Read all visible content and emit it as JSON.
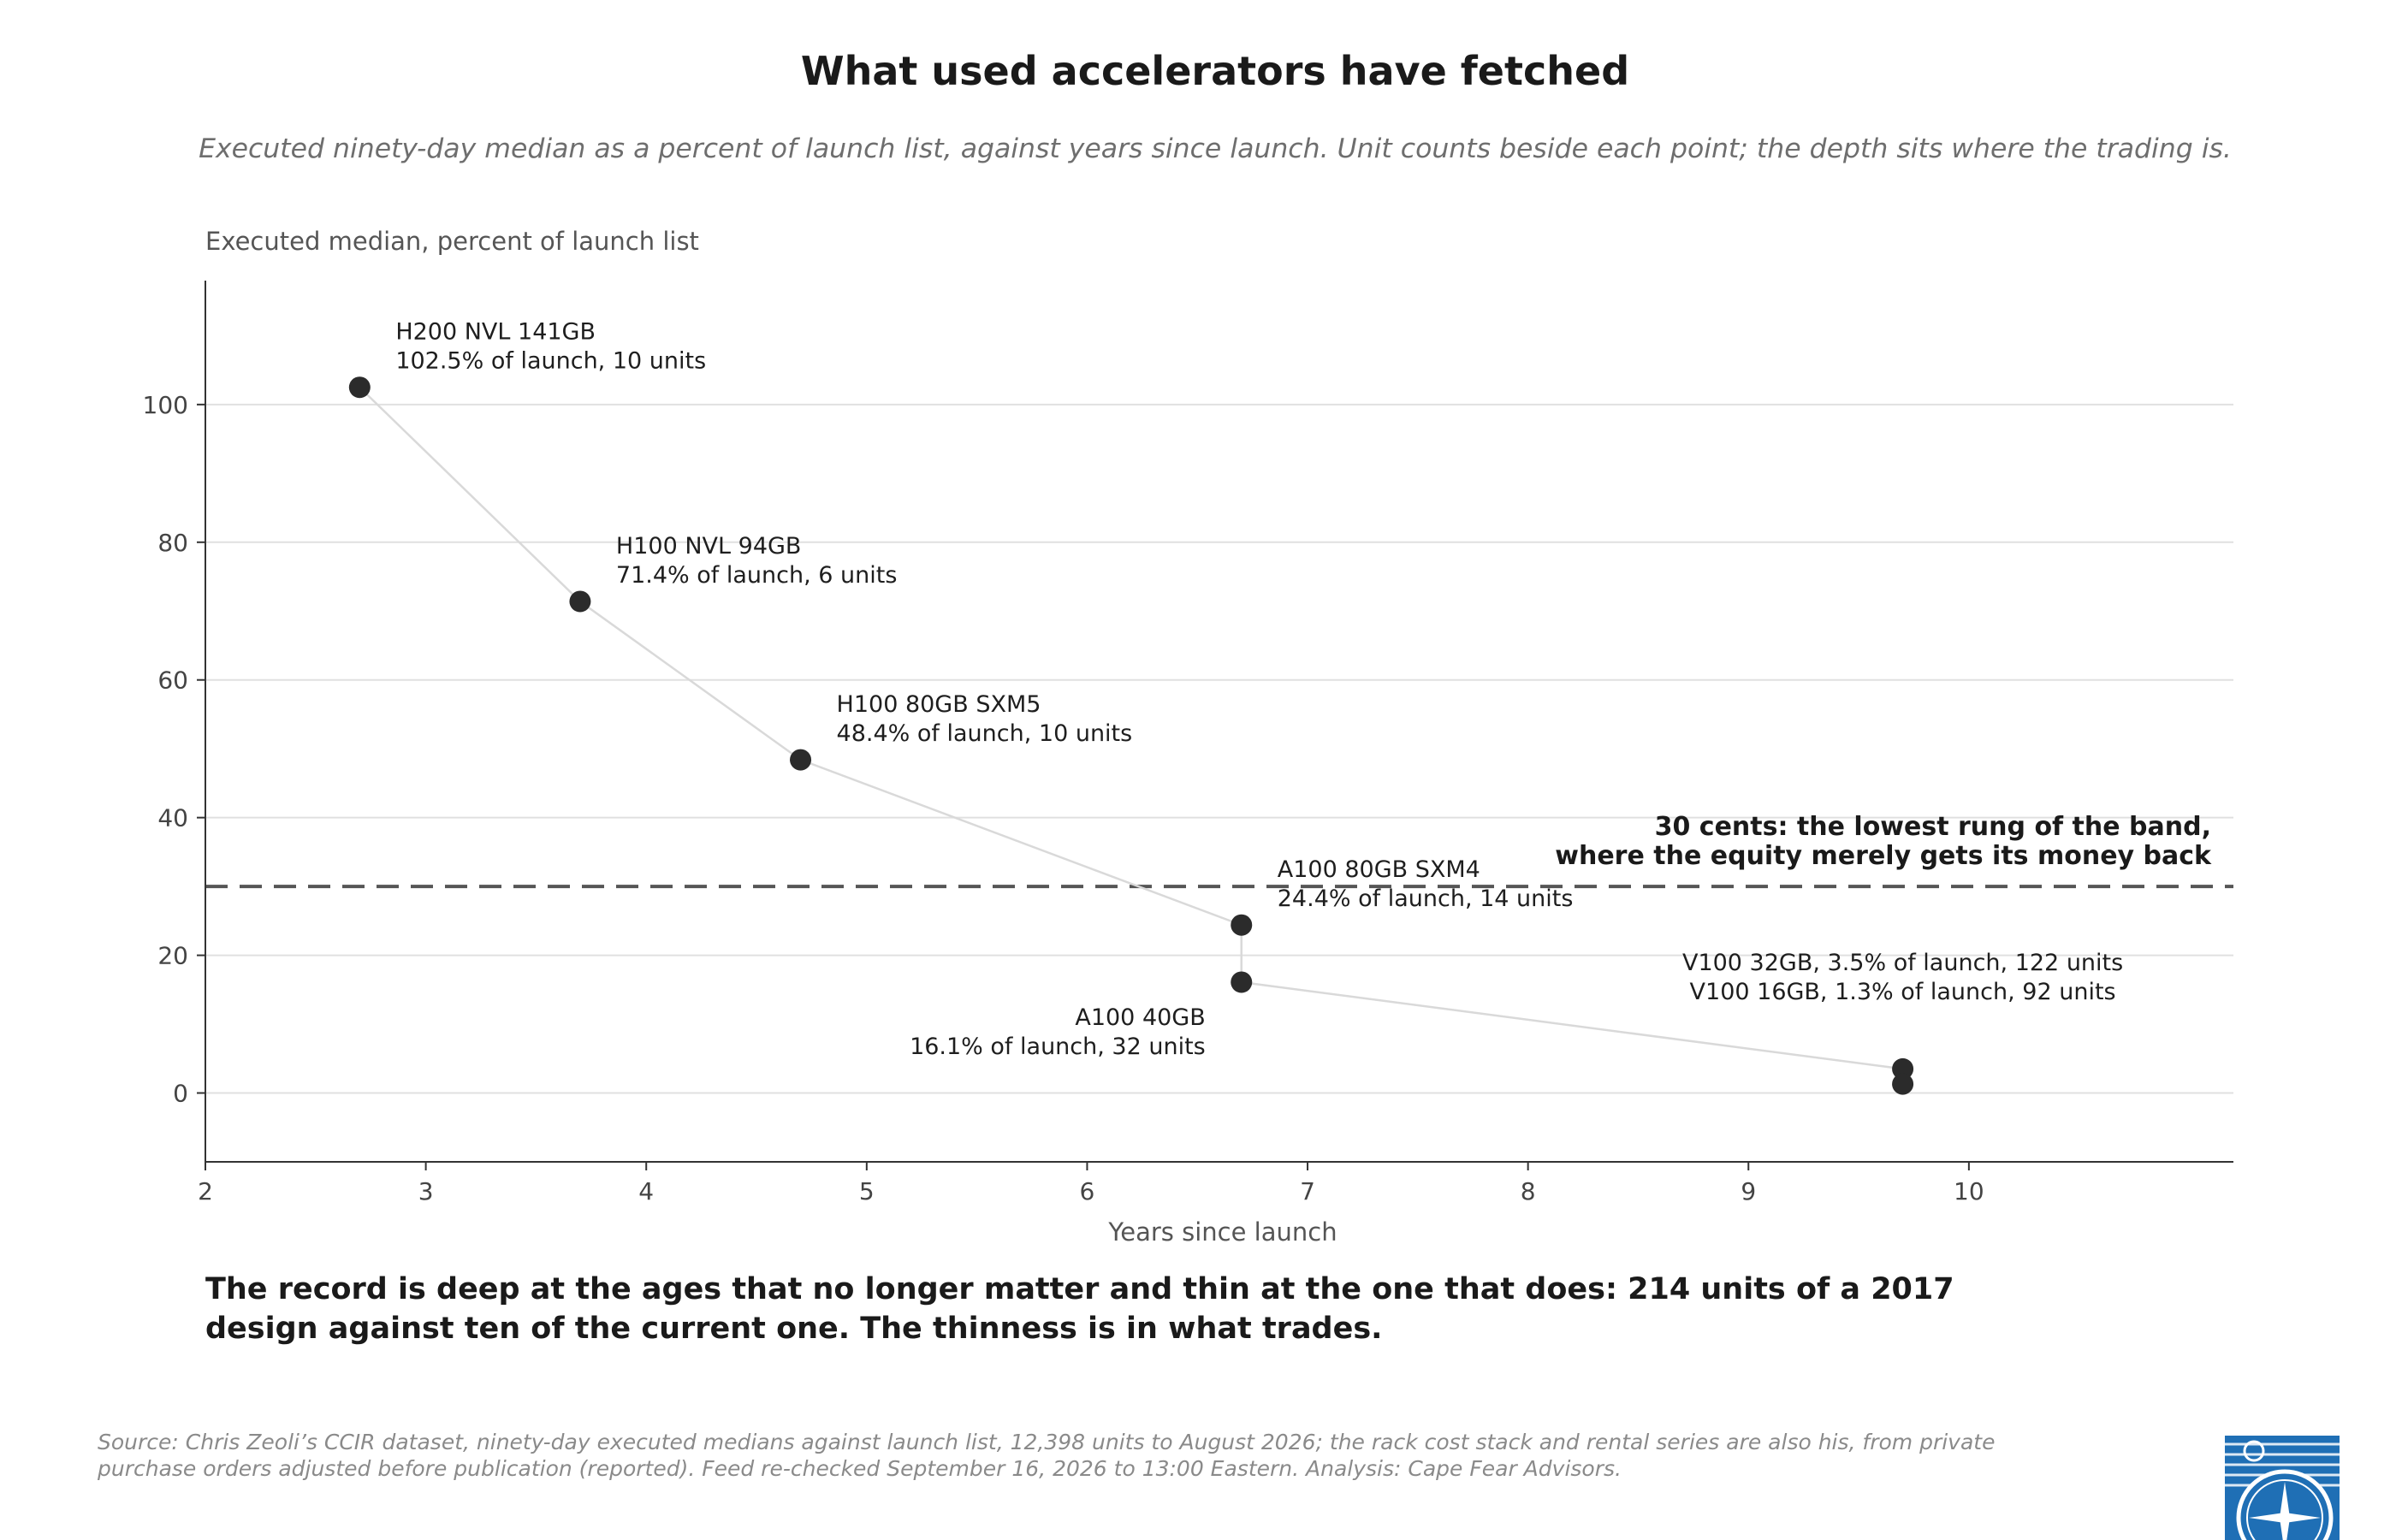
{
  "title": "What used accelerators have fetched",
  "subtitle": "Executed ninety-day median as a percent of launch list, against years since launch. Unit counts beside each point; the depth sits where the trading is.",
  "takeaway": "The record is deep at the ages that no longer matter and thin at the one that does: 214 units of a 2017 design against ten of the current one. The thinness is in what trades.",
  "source": "Source: Chris Zeoli’s CCIR dataset, ninety-day executed medians against launch list, 12,398 units to August 2026; the rack cost stack and rental series are also his, from private purchase orders adjusted before publication (reported). Feed re-checked September 16, 2026 to 13:00 Eastern. Analysis: Cape Fear Advisors.",
  "colors": {
    "point": "#2b2b2b",
    "connector": "#d9d9d9",
    "grid": "#e0e0e0",
    "reference": "#555555",
    "axis": "#333333",
    "logo": "#1f6fb5"
  },
  "chart_data": {
    "type": "scatter",
    "xlabel": "Years since launch",
    "ylabel": "Executed median, percent of launch list",
    "xlim": [
      2,
      11.2
    ],
    "ylim": [
      -10,
      118
    ],
    "xticks": [
      2,
      3,
      4,
      5,
      6,
      7,
      8,
      9,
      10
    ],
    "yticks": [
      0,
      20,
      40,
      60,
      80,
      100
    ],
    "grid": "horizontal",
    "points": [
      {
        "name": "H200 NVL 141GB",
        "x": 2.7,
        "y": 102.5,
        "units": 10,
        "label": "102.5% of launch, 10 units",
        "label_side": "right"
      },
      {
        "name": "H100 NVL 94GB",
        "x": 3.7,
        "y": 71.4,
        "units": 6,
        "label": "71.4% of launch, 6 units",
        "label_side": "right"
      },
      {
        "name": "H100 80GB SXM5",
        "x": 4.7,
        "y": 48.4,
        "units": 10,
        "label": "48.4% of launch, 10 units",
        "label_side": "right"
      },
      {
        "name": "A100 80GB SXM4",
        "x": 6.7,
        "y": 24.4,
        "units": 14,
        "label": "24.4% of launch, 14 units",
        "label_side": "right"
      },
      {
        "name": "A100 40GB",
        "x": 6.7,
        "y": 16.1,
        "units": 32,
        "label": "16.1% of launch, 32 units",
        "label_side": "left"
      },
      {
        "name": "V100 32GB",
        "x": 9.7,
        "y": 3.5,
        "units": 122,
        "label": "V100 32GB, 3.5% of launch, 122 units",
        "label_side": "above"
      },
      {
        "name": "V100 16GB",
        "x": 9.7,
        "y": 1.3,
        "units": 92,
        "label": "V100 16GB, 1.3% of launch, 92 units",
        "label_side": "above"
      }
    ],
    "connector_order": [
      "H200 NVL 141GB",
      "H100 NVL 94GB",
      "H100 80GB SXM5",
      "A100 80GB SXM4",
      "A100 40GB",
      "V100 32GB",
      "V100 16GB"
    ],
    "reference_line": {
      "y": 30,
      "style": "dashed",
      "label_lines": [
        "30 cents: the lowest rung of the band,",
        "where the equity merely gets its money back"
      ]
    }
  }
}
